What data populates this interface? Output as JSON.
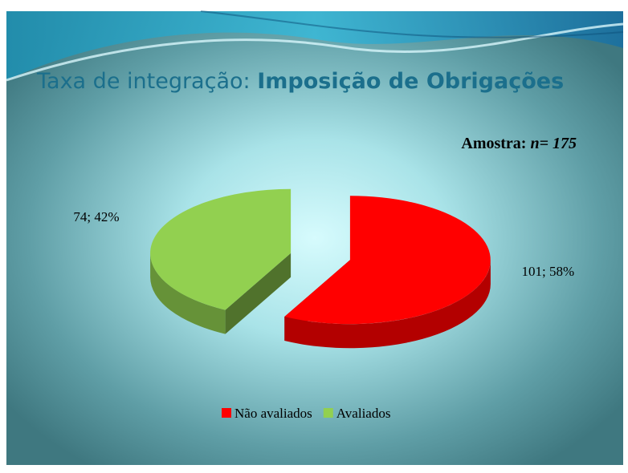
{
  "chart_data": {
    "type": "pie",
    "title": "Taxa de integração:",
    "subtitle": "Imposição de Obrigações",
    "annotation_label": "Amostra:",
    "annotation_value": "n= 175",
    "categories": [
      "Não avaliados",
      "Avaliados"
    ],
    "values": [
      101,
      74
    ],
    "value_labels": [
      "101; 58%",
      "74; 42%"
    ],
    "colors": [
      "#ff0000",
      "#92d050"
    ],
    "legend": "bottom"
  }
}
